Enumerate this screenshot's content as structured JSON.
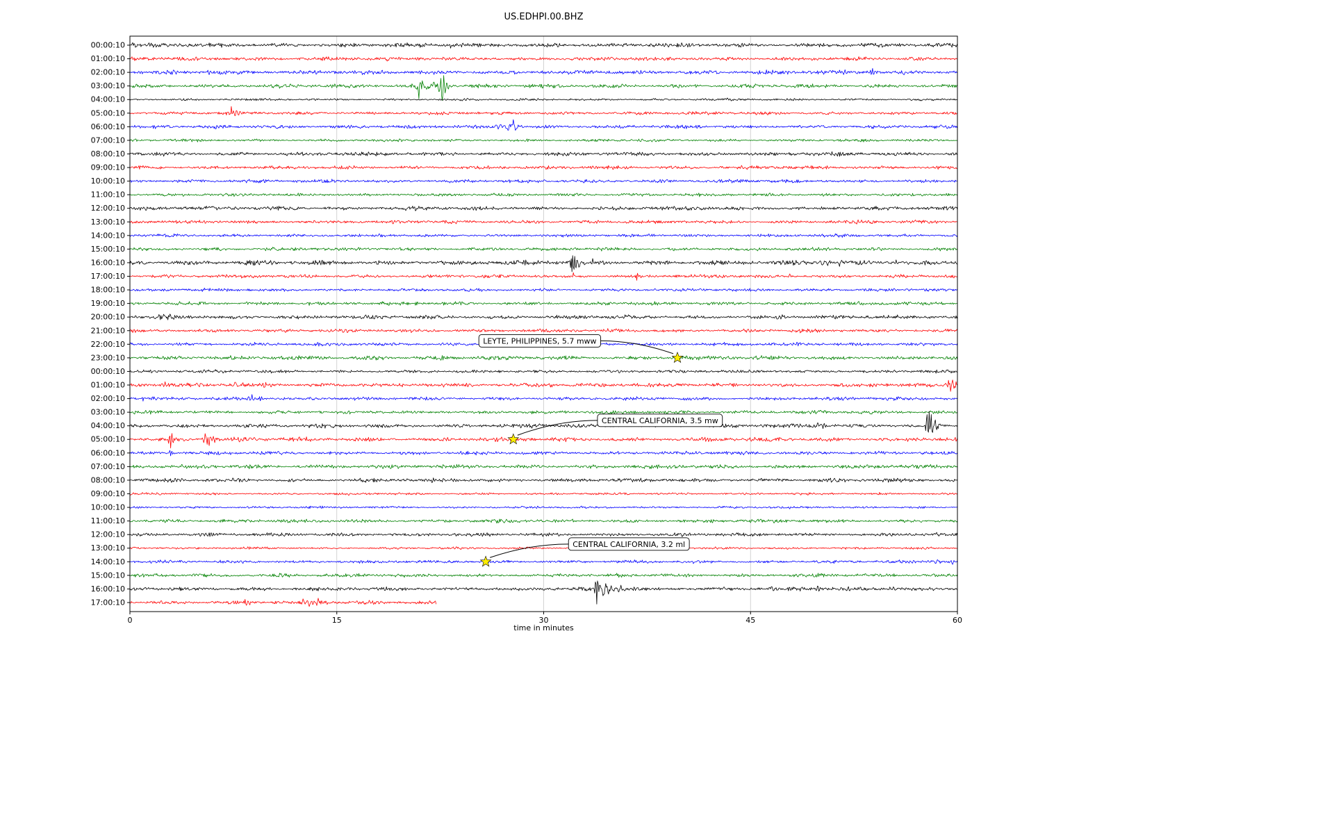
{
  "chart_data": {
    "type": "line",
    "subtype": "seismogram-helicorder-dayplot",
    "title": "US.EDHPI.00.BHZ",
    "xlabel": "time in minutes",
    "x_ticks": [
      0,
      15,
      30,
      45,
      60
    ],
    "x_range_minutes": [
      0,
      60
    ],
    "grid": true,
    "trace_colors_cycle": [
      "#000000",
      "#ff0000",
      "#0000ff",
      "#008000"
    ],
    "rows": [
      {
        "label": "00:00:10",
        "color": "#000000",
        "noise": 1.1,
        "bursts": [
          [
            0.5,
            2,
            0.5
          ],
          [
            16.5,
            5,
            0.12
          ],
          [
            23.2,
            3.5,
            0.1
          ],
          [
            40.8,
            3,
            0.12
          ]
        ]
      },
      {
        "label": "01:00:10",
        "color": "#ff0000",
        "noise": 1.0,
        "bursts": []
      },
      {
        "label": "02:00:10",
        "color": "#0000ff",
        "noise": 1.1,
        "bursts": [
          [
            5.8,
            3.5,
            0.3
          ],
          [
            6.6,
            4,
            0.2
          ],
          [
            30,
            2.5,
            0.2
          ],
          [
            33.5,
            2.5,
            0.15
          ],
          [
            51.8,
            3.5,
            0.3
          ],
          [
            53.8,
            5,
            0.25
          ]
        ]
      },
      {
        "label": "03:00:10",
        "color": "#008000",
        "noise": 1.0,
        "bursts": [
          [
            21,
            18,
            0.25
          ],
          [
            21.8,
            6,
            1.0
          ],
          [
            22.7,
            20,
            0.3
          ]
        ]
      },
      {
        "label": "04:00:10",
        "color": "#000000",
        "noise": 0.6,
        "bursts": []
      },
      {
        "label": "05:00:10",
        "color": "#ff0000",
        "noise": 0.8,
        "bursts": [
          [
            7.4,
            9,
            0.1
          ],
          [
            7.7,
            3,
            0.3
          ]
        ]
      },
      {
        "label": "06:00:10",
        "color": "#0000ff",
        "noise": 0.9,
        "bursts": [
          [
            26.8,
            4,
            0.4
          ],
          [
            27.5,
            6,
            0.8
          ],
          [
            27.8,
            24,
            0.12
          ]
        ]
      },
      {
        "label": "07:00:10",
        "color": "#008000",
        "noise": 0.7,
        "bursts": []
      },
      {
        "label": "08:00:10",
        "color": "#000000",
        "noise": 1.0,
        "bursts": [
          [
            23.6,
            2.5,
            0.1
          ]
        ]
      },
      {
        "label": "09:00:10",
        "color": "#ff0000",
        "noise": 0.9,
        "bursts": [
          [
            23.5,
            2.5,
            0.1
          ],
          [
            33,
            2,
            0.1
          ],
          [
            43,
            2,
            0.1
          ]
        ]
      },
      {
        "label": "10:00:10",
        "color": "#0000ff",
        "noise": 0.9,
        "bursts": []
      },
      {
        "label": "11:00:10",
        "color": "#008000",
        "noise": 0.8,
        "bursts": []
      },
      {
        "label": "12:00:10",
        "color": "#000000",
        "noise": 1.0,
        "bursts": []
      },
      {
        "label": "13:00:10",
        "color": "#ff0000",
        "noise": 0.9,
        "bursts": []
      },
      {
        "label": "14:00:10",
        "color": "#0000ff",
        "noise": 0.8,
        "bursts": []
      },
      {
        "label": "15:00:10",
        "color": "#008000",
        "noise": 0.9,
        "bursts": [
          [
            32,
            2.5,
            0.12
          ],
          [
            58.7,
            2.5,
            0.1
          ]
        ]
      },
      {
        "label": "16:00:10",
        "color": "#000000",
        "noise": 1.2,
        "bursts": [
          [
            32.1,
            24,
            0.15
          ],
          [
            32.4,
            10,
            0.3
          ],
          [
            33.7,
            6,
            0.25
          ],
          [
            50.3,
            5,
            0.5
          ],
          [
            51.5,
            4,
            0.4
          ],
          [
            53.5,
            3,
            0.4
          ],
          [
            55.5,
            3.5,
            0.3
          ]
        ]
      },
      {
        "label": "17:00:10",
        "color": "#ff0000",
        "noise": 0.9,
        "bursts": [
          [
            32.1,
            5,
            0.2
          ],
          [
            36.8,
            6,
            0.18
          ],
          [
            47.8,
            2.5,
            0.2
          ]
        ]
      },
      {
        "label": "18:00:10",
        "color": "#0000ff",
        "noise": 0.8,
        "bursts": []
      },
      {
        "label": "19:00:10",
        "color": "#008000",
        "noise": 0.9,
        "bursts": [
          [
            8,
            2.5,
            0.2
          ],
          [
            13,
            2.5,
            0.15
          ],
          [
            20.8,
            4.5,
            0.12
          ],
          [
            30.5,
            3,
            0.2
          ]
        ]
      },
      {
        "label": "20:00:10",
        "color": "#000000",
        "noise": 1.0,
        "bursts": [
          [
            2.8,
            3,
            0.6
          ],
          [
            47,
            3,
            0.3
          ],
          [
            58.2,
            2.5,
            0.2
          ]
        ]
      },
      {
        "label": "21:00:10",
        "color": "#ff0000",
        "noise": 0.9,
        "bursts": [
          [
            44.5,
            2.5,
            0.1
          ],
          [
            48.7,
            3.5,
            0.12
          ],
          [
            54,
            3,
            0.1
          ],
          [
            57,
            3,
            0.1
          ]
        ]
      },
      {
        "label": "22:00:10",
        "color": "#0000ff",
        "noise": 0.9,
        "bursts": []
      },
      {
        "label": "23:00:10",
        "color": "#008000",
        "noise": 1.0,
        "bursts": [
          [
            18,
            3,
            0.5
          ],
          [
            22.6,
            3.5,
            0.2
          ],
          [
            40,
            2.5,
            0.4
          ]
        ]
      },
      {
        "label": "00:00:10",
        "color": "#000000",
        "noise": 0.8,
        "bursts": []
      },
      {
        "label": "01:00:10",
        "color": "#ff0000",
        "noise": 1.0,
        "bursts": [
          [
            2.5,
            3,
            0.3
          ],
          [
            8,
            4,
            0.6
          ],
          [
            9.8,
            5,
            0.3
          ],
          [
            29.5,
            4,
            0.3
          ],
          [
            30.5,
            4,
            0.2
          ],
          [
            59.6,
            11,
            0.35
          ]
        ]
      },
      {
        "label": "02:00:10",
        "color": "#0000ff",
        "noise": 0.9,
        "bursts": [
          [
            1,
            3.5,
            0.2
          ],
          [
            8.8,
            5.5,
            0.3
          ],
          [
            9.5,
            4,
            0.2
          ]
        ]
      },
      {
        "label": "03:00:10",
        "color": "#008000",
        "noise": 0.9,
        "bursts": [
          [
            22.6,
            3,
            0.12
          ],
          [
            36.5,
            3,
            0.15
          ],
          [
            44,
            2.5,
            0.15
          ]
        ]
      },
      {
        "label": "04:00:10",
        "color": "#000000",
        "noise": 1.0,
        "bursts": [
          [
            49.8,
            5,
            0.3
          ],
          [
            50.3,
            4,
            0.2
          ],
          [
            57.9,
            20,
            0.2
          ],
          [
            58.3,
            10,
            0.4
          ]
        ]
      },
      {
        "label": "05:00:10",
        "color": "#ff0000",
        "noise": 1.1,
        "bursts": [
          [
            3,
            14,
            0.2
          ],
          [
            5.6,
            12,
            0.25
          ],
          [
            6.2,
            6,
            0.2
          ],
          [
            27.8,
            2,
            0.2
          ]
        ]
      },
      {
        "label": "06:00:10",
        "color": "#0000ff",
        "noise": 0.9,
        "bursts": [
          [
            3,
            5,
            0.2
          ]
        ]
      },
      {
        "label": "07:00:10",
        "color": "#008000",
        "noise": 1.0,
        "bursts": []
      },
      {
        "label": "08:00:10",
        "color": "#000000",
        "noise": 1.0,
        "bursts": []
      },
      {
        "label": "09:00:10",
        "color": "#ff0000",
        "noise": 0.6,
        "bursts": []
      },
      {
        "label": "10:00:10",
        "color": "#0000ff",
        "noise": 0.6,
        "bursts": []
      },
      {
        "label": "11:00:10",
        "color": "#008000",
        "noise": 0.9,
        "bursts": []
      },
      {
        "label": "12:00:10",
        "color": "#000000",
        "noise": 0.9,
        "bursts": [
          [
            58,
            3.5,
            0.12
          ]
        ]
      },
      {
        "label": "13:00:10",
        "color": "#ff0000",
        "noise": 0.6,
        "bursts": []
      },
      {
        "label": "14:00:10",
        "color": "#0000ff",
        "noise": 0.8,
        "bursts": [
          [
            25.8,
            2,
            0.3
          ],
          [
            58.5,
            3,
            0.5
          ],
          [
            59.7,
            3,
            0.3
          ]
        ]
      },
      {
        "label": "15:00:10",
        "color": "#008000",
        "noise": 0.9,
        "bursts": [
          [
            11.2,
            4,
            0.5
          ]
        ]
      },
      {
        "label": "16:00:10",
        "color": "#000000",
        "noise": 1.0,
        "bursts": [
          [
            33.9,
            22,
            0.2
          ],
          [
            34.4,
            10,
            0.5
          ],
          [
            35.5,
            6,
            0.5
          ],
          [
            36.5,
            4,
            0.3
          ],
          [
            46.5,
            3,
            0.3
          ],
          [
            49.8,
            3,
            0.3
          ],
          [
            52,
            2.5,
            0.3
          ],
          [
            55.3,
            3.5,
            0.3
          ]
        ]
      },
      {
        "label": "17:00:10",
        "color": "#ff0000",
        "noise": 1.0,
        "end": 22.2,
        "bursts": [
          [
            8.5,
            4,
            0.3
          ],
          [
            12.8,
            6,
            0.35
          ],
          [
            13.6,
            6,
            0.3
          ],
          [
            14.2,
            4,
            0.2
          ]
        ]
      }
    ],
    "events": [
      {
        "label": "LEYTE, PHILIPPINES, 5.7 mww",
        "row": 23,
        "x": 39.7,
        "box_x": 25.3,
        "box_row": 21.75,
        "marker_color": "#ffee00"
      },
      {
        "label": "CENTRAL CALIFORNIA, 3.5 mw",
        "row": 29,
        "x": 27.8,
        "box_x": 33.9,
        "box_row": 27.6,
        "marker_color": "#ffee00"
      },
      {
        "label": "CENTRAL CALIFORNIA, 3.2 ml",
        "row": 38,
        "x": 25.8,
        "box_x": 31.8,
        "box_row": 36.7,
        "marker_color": "#ffee00"
      }
    ]
  }
}
